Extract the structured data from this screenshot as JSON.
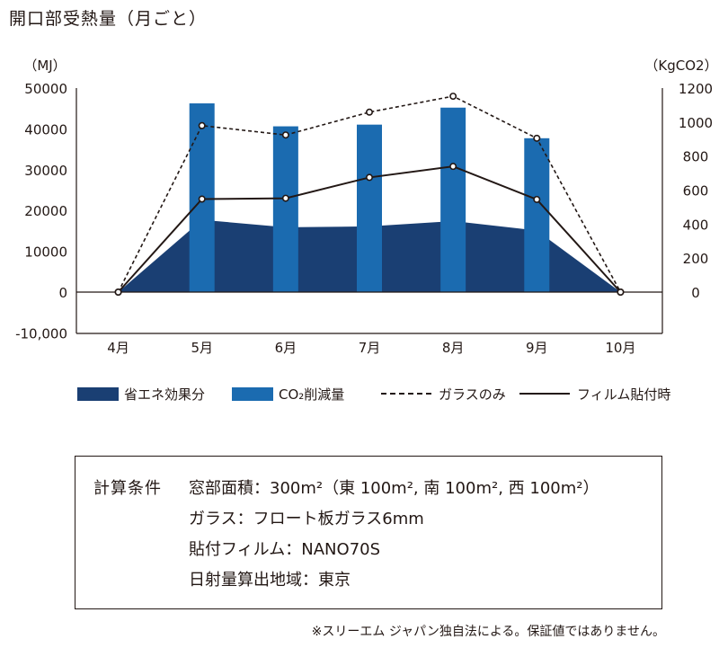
{
  "title": "開口部受熱量（月ごと）",
  "chart_data": {
    "type": "bar",
    "categories": [
      "4月",
      "5月",
      "6月",
      "7月",
      "8月",
      "9月",
      "10月"
    ],
    "y_left": {
      "unit_label": "（MJ）",
      "range": [
        -10000,
        50000
      ],
      "ticks": [
        50000,
        40000,
        30000,
        20000,
        10000,
        0
      ],
      "tick_labels": [
        "50000",
        "40000",
        "30000",
        "20000",
        "10000",
        "0",
        "-10,000"
      ],
      "tick_values": [
        50000,
        40000,
        30000,
        20000,
        10000,
        0,
        -10000
      ]
    },
    "y_right": {
      "unit_label": "（KgCO2）",
      "range": [
        -200,
        1200
      ],
      "tick_labels": [
        "1200",
        "1000",
        "800",
        "600",
        "400",
        "200",
        "0"
      ],
      "tick_values": [
        1200,
        1000,
        800,
        600,
        400,
        200,
        0
      ]
    },
    "series": [
      {
        "name": "省エネ効果分",
        "type": "area",
        "axis": "left",
        "color": "#1a3f73",
        "values": [
          0,
          17700,
          15900,
          16100,
          17400,
          15100,
          0
        ]
      },
      {
        "name": "CO2削減量",
        "type": "bar",
        "axis": "right",
        "color": "#1b6bb0",
        "values": [
          null,
          1110,
          975,
          985,
          1085,
          905,
          null
        ]
      },
      {
        "name": "ガラスのみ",
        "type": "line",
        "style": "dashed",
        "axis": "left",
        "color": "#231815",
        "values": [
          0,
          40800,
          38500,
          44100,
          48000,
          37700,
          0
        ]
      },
      {
        "name": "フィルム貼付時",
        "type": "line",
        "style": "solid",
        "axis": "left",
        "color": "#231815",
        "values": [
          0,
          22800,
          23000,
          28100,
          30800,
          22700,
          0
        ]
      }
    ],
    "grid": false,
    "legend_position": "bottom"
  },
  "legend": [
    {
      "label": "省エネ効果分",
      "kind": "rect",
      "color": "#1a3f73"
    },
    {
      "label": "CO₂削減量",
      "kind": "rect",
      "color": "#1b6bb0"
    },
    {
      "label": "ガラスのみ",
      "kind": "dashed"
    },
    {
      "label": "フィルム貼付時",
      "kind": "solid"
    }
  ],
  "conditions": {
    "heading": "計算条件",
    "rows": [
      "窓部面積：300m²（東 100m², 南 100m², 西 100m²）",
      "ガラス：フロート板ガラス6mm",
      "貼付フィルム：NANO70S",
      "日射量算出地域：東京"
    ]
  },
  "footnote": "※スリーエム ジャパン独自法による。保証値ではありません。"
}
